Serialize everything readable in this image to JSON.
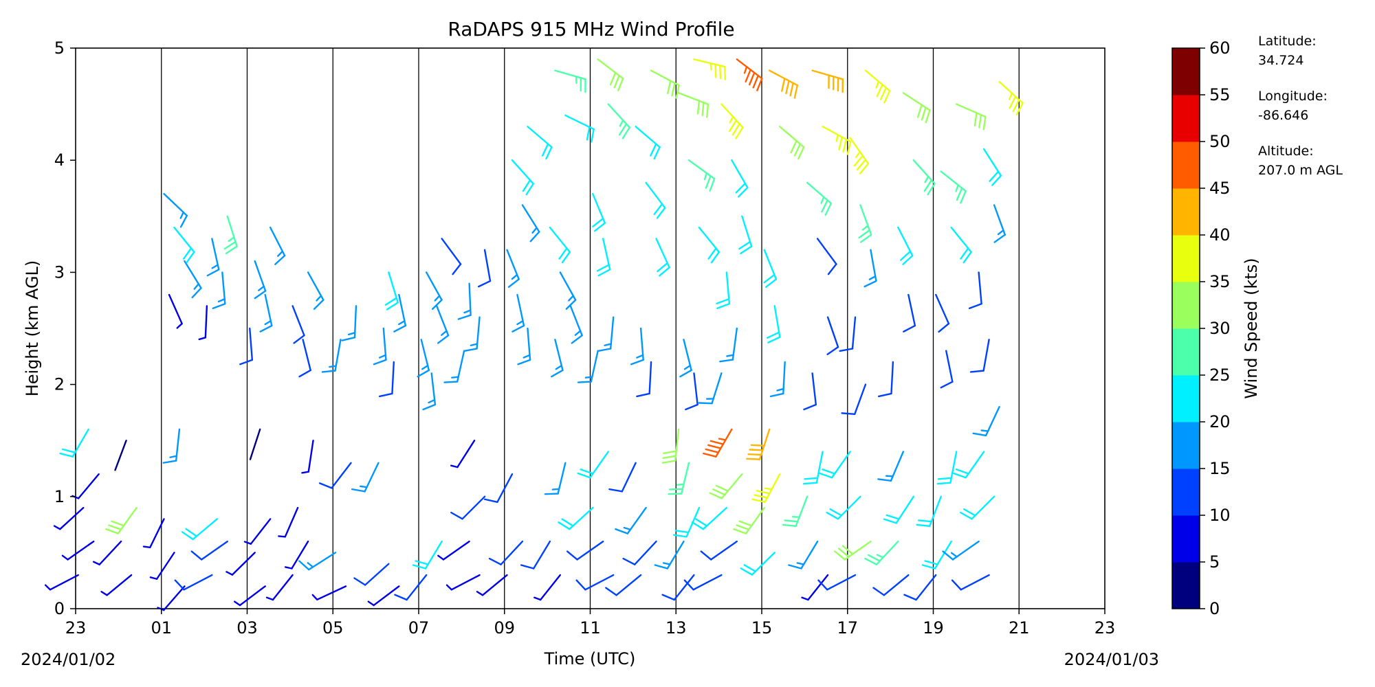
{
  "chart_data": {
    "type": "wind_barbs",
    "title": "RaDAPS 915 MHz Wind Profile",
    "xlabel": "Time (UTC)",
    "ylabel": "Height (km AGL)",
    "x_tick_labels": [
      "23",
      "01",
      "03",
      "05",
      "07",
      "09",
      "11",
      "13",
      "15",
      "17",
      "19",
      "21",
      "23"
    ],
    "x_range_hours": [
      0,
      24
    ],
    "x_vertical_lines_at_hours": [
      2,
      4,
      6,
      8,
      10,
      12,
      14,
      16,
      18,
      20,
      22
    ],
    "start_date_label": "2024/01/02",
    "end_date_label": "2024/01/03",
    "y_ticks": [
      0,
      1,
      2,
      3,
      4,
      5
    ],
    "ylim": [
      0,
      5
    ],
    "colorbar": {
      "label": "Wind Speed (kts)",
      "ticks": [
        0,
        5,
        10,
        15,
        20,
        25,
        30,
        35,
        40,
        45,
        50,
        55,
        60
      ],
      "colors": [
        "#00007f",
        "#0000e8",
        "#0040ff",
        "#0098ff",
        "#00f0ff",
        "#4cffaa",
        "#9aff5c",
        "#e8ff0e",
        "#ffb400",
        "#ff5c00",
        "#e80000",
        "#7f0000"
      ]
    },
    "site_info": {
      "lat_label": "Latitude:",
      "lat_value": "34.724",
      "lon_label": "Longitude:",
      "lon_value": "-86.646",
      "alt_label": "Altitude:",
      "alt_value": "207.0 m AGL"
    },
    "series": [
      {
        "t": 0.3,
        "layers": [
          [
            0.3,
            8
          ],
          [
            0.6,
            6
          ],
          [
            0.9,
            7
          ],
          [
            1.2,
            5
          ],
          [
            1.6,
            22
          ]
        ]
      },
      {
        "t": 1.3,
        "layers": [
          [
            0.3,
            9
          ],
          [
            0.6,
            7
          ],
          [
            0.9,
            30
          ],
          [
            1.5,
            4
          ]
        ]
      },
      {
        "t": 2.3,
        "layers": [
          [
            0.2,
            6
          ],
          [
            0.5,
            8
          ],
          [
            0.8,
            7
          ],
          [
            1.6,
            15
          ],
          [
            2.8,
            5
          ],
          [
            3.1,
            17
          ],
          [
            3.4,
            20
          ],
          [
            3.7,
            18
          ]
        ]
      },
      {
        "t": 3.3,
        "layers": [
          [
            0.3,
            10
          ],
          [
            0.6,
            12
          ],
          [
            0.8,
            22
          ],
          [
            2.7,
            8
          ],
          [
            3.0,
            15
          ],
          [
            3.3,
            18
          ],
          [
            3.5,
            25
          ]
        ]
      },
      {
        "t": 4.3,
        "layers": [
          [
            0.2,
            5
          ],
          [
            0.5,
            7
          ],
          [
            0.8,
            9
          ],
          [
            1.6,
            4
          ],
          [
            2.5,
            10
          ],
          [
            2.8,
            15
          ],
          [
            3.1,
            17
          ],
          [
            3.4,
            16
          ]
        ]
      },
      {
        "t": 5.3,
        "layers": [
          [
            0.3,
            9
          ],
          [
            0.6,
            8
          ],
          [
            0.9,
            6
          ],
          [
            1.5,
            5
          ],
          [
            2.4,
            12
          ],
          [
            2.7,
            14
          ],
          [
            3.0,
            15
          ]
        ]
      },
      {
        "t": 6.3,
        "layers": [
          [
            0.2,
            7
          ],
          [
            0.5,
            15
          ],
          [
            1.3,
            10
          ],
          [
            2.4,
            15
          ],
          [
            2.7,
            16
          ]
        ]
      },
      {
        "t": 7.3,
        "layers": [
          [
            0.2,
            9
          ],
          [
            0.4,
            12
          ],
          [
            1.3,
            18
          ],
          [
            2.2,
            14
          ],
          [
            2.5,
            16
          ],
          [
            2.8,
            17
          ],
          [
            3.0,
            20
          ]
        ]
      },
      {
        "t": 8.3,
        "layers": [
          [
            0.3,
            10
          ],
          [
            0.6,
            20
          ],
          [
            2.1,
            15
          ],
          [
            2.4,
            16
          ],
          [
            2.7,
            17
          ],
          [
            3.0,
            18
          ],
          [
            3.3,
            12
          ]
        ]
      },
      {
        "t": 9.3,
        "layers": [
          [
            0.3,
            8
          ],
          [
            0.6,
            9
          ],
          [
            1.0,
            12
          ],
          [
            1.5,
            6
          ],
          [
            2.3,
            15
          ],
          [
            2.6,
            16
          ],
          [
            2.9,
            17
          ],
          [
            3.2,
            14
          ]
        ]
      },
      {
        "t": 10.3,
        "layers": [
          [
            0.3,
            7
          ],
          [
            0.6,
            10
          ],
          [
            1.2,
            14
          ],
          [
            2.5,
            18
          ],
          [
            2.8,
            16
          ],
          [
            3.2,
            15
          ],
          [
            3.6,
            17
          ],
          [
            4.0,
            20
          ],
          [
            4.3,
            22
          ]
        ]
      },
      {
        "t": 11.3,
        "layers": [
          [
            0.3,
            9
          ],
          [
            0.6,
            11
          ],
          [
            1.3,
            18
          ],
          [
            2.4,
            17
          ],
          [
            2.7,
            19
          ],
          [
            3.0,
            18
          ],
          [
            3.4,
            20
          ],
          [
            4.4,
            24
          ],
          [
            4.8,
            28
          ]
        ]
      },
      {
        "t": 12.3,
        "layers": [
          [
            0.3,
            10
          ],
          [
            0.6,
            12
          ],
          [
            0.9,
            22
          ],
          [
            1.4,
            20
          ],
          [
            2.3,
            18
          ],
          [
            2.6,
            19
          ],
          [
            3.3,
            20
          ],
          [
            3.7,
            22
          ],
          [
            4.5,
            27
          ],
          [
            4.9,
            30
          ]
        ]
      },
      {
        "t": 13.3,
        "layers": [
          [
            0.3,
            11
          ],
          [
            0.6,
            14
          ],
          [
            0.9,
            16
          ],
          [
            1.3,
            14
          ],
          [
            2.2,
            12
          ],
          [
            2.5,
            16
          ],
          [
            3.3,
            20
          ],
          [
            3.8,
            22
          ],
          [
            4.3,
            24
          ],
          [
            4.8,
            32
          ]
        ]
      },
      {
        "t": 14.3,
        "layers": [
          [
            0.3,
            12
          ],
          [
            0.6,
            16
          ],
          [
            0.9,
            22
          ],
          [
            1.3,
            26
          ],
          [
            1.6,
            34
          ],
          [
            2.1,
            14
          ],
          [
            2.4,
            18
          ],
          [
            3.4,
            22
          ],
          [
            4.0,
            25
          ],
          [
            4.6,
            34
          ],
          [
            4.9,
            38
          ]
        ]
      },
      {
        "t": 15.3,
        "layers": [
          [
            0.3,
            10
          ],
          [
            0.6,
            14
          ],
          [
            0.9,
            20
          ],
          [
            1.2,
            32
          ],
          [
            1.6,
            48
          ],
          [
            2.1,
            16
          ],
          [
            2.5,
            18
          ],
          [
            3.0,
            20
          ],
          [
            3.5,
            20
          ],
          [
            4.0,
            22
          ],
          [
            4.5,
            35
          ],
          [
            4.9,
            48
          ]
        ]
      },
      {
        "t": 16.3,
        "layers": [
          [
            0.5,
            22
          ],
          [
            0.9,
            30
          ],
          [
            1.2,
            38
          ],
          [
            1.6,
            40
          ],
          [
            2.2,
            18
          ],
          [
            2.7,
            20
          ],
          [
            3.2,
            22
          ],
          [
            4.3,
            34
          ],
          [
            4.8,
            42
          ]
        ]
      },
      {
        "t": 17.3,
        "layers": [
          [
            0.3,
            8
          ],
          [
            0.6,
            18
          ],
          [
            1.0,
            26
          ],
          [
            1.4,
            24
          ],
          [
            2.1,
            10
          ],
          [
            2.6,
            12
          ],
          [
            3.3,
            10
          ],
          [
            3.8,
            26
          ],
          [
            4.3,
            38
          ],
          [
            4.8,
            40
          ]
        ]
      },
      {
        "t": 18.3,
        "layers": [
          [
            0.3,
            12
          ],
          [
            0.6,
            30
          ],
          [
            1.0,
            24
          ],
          [
            1.4,
            20
          ],
          [
            2.0,
            10
          ],
          [
            2.6,
            12
          ],
          [
            3.2,
            16
          ],
          [
            3.6,
            28
          ],
          [
            4.2,
            38
          ],
          [
            4.8,
            38
          ]
        ]
      },
      {
        "t": 19.3,
        "layers": [
          [
            0.3,
            10
          ],
          [
            0.6,
            28
          ],
          [
            1.0,
            22
          ],
          [
            1.4,
            18
          ],
          [
            2.2,
            12
          ],
          [
            2.8,
            10
          ],
          [
            3.4,
            22
          ],
          [
            4.0,
            28
          ],
          [
            4.6,
            30
          ]
        ]
      },
      {
        "t": 20.3,
        "layers": [
          [
            0.3,
            12
          ],
          [
            0.6,
            22
          ],
          [
            1.0,
            20
          ],
          [
            1.4,
            20
          ],
          [
            2.3,
            10
          ],
          [
            2.8,
            12
          ],
          [
            3.4,
            24
          ],
          [
            3.9,
            26
          ],
          [
            4.5,
            32
          ]
        ]
      },
      {
        "t": 21.3,
        "layers": [
          [
            0.3,
            10
          ],
          [
            0.6,
            18
          ],
          [
            1.0,
            22
          ],
          [
            1.4,
            20
          ],
          [
            1.8,
            16
          ],
          [
            2.4,
            14
          ],
          [
            3.0,
            12
          ],
          [
            3.6,
            16
          ],
          [
            4.1,
            24
          ],
          [
            4.7,
            36
          ]
        ]
      }
    ]
  }
}
